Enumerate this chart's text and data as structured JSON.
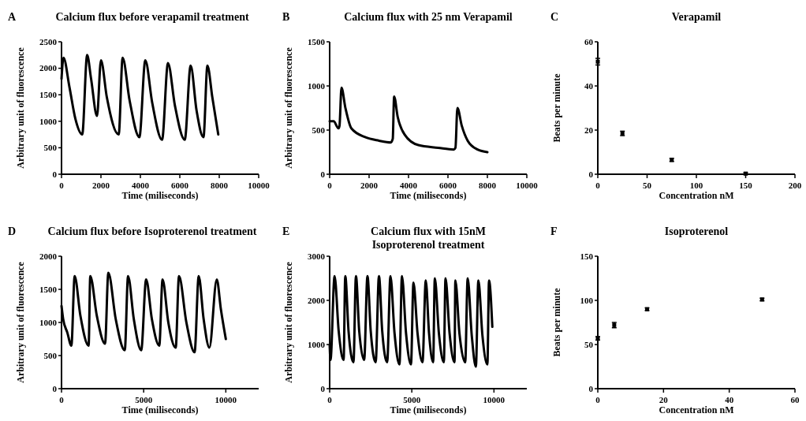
{
  "chart_data": [
    {
      "type": "line",
      "title": "Calcium flux before verapamil treatment",
      "annotations": [
        "A"
      ],
      "xlabel": "Time (miliseconds)",
      "ylabel": "Arbitrary unit of fluorescence",
      "xlim": [
        0,
        10000
      ],
      "xticks": [
        0,
        2000,
        4000,
        6000,
        8000,
        10000
      ],
      "ylim": [
        0,
        2500
      ],
      "yticks": [
        0,
        500,
        1000,
        1500,
        2000,
        2500
      ],
      "color": "#000000",
      "x": [
        0,
        100,
        400,
        700,
        1050,
        1300,
        1500,
        1800,
        2000,
        2300,
        2900,
        3100,
        3450,
        3950,
        4250,
        4600,
        5100,
        5400,
        5750,
        6250,
        6550,
        6850,
        7200,
        7400,
        7650,
        7950
      ],
      "values": [
        1800,
        2200,
        1650,
        1050,
        750,
        2250,
        1800,
        1100,
        2150,
        1450,
        750,
        2200,
        1400,
        700,
        2150,
        1350,
        650,
        2100,
        1300,
        650,
        2050,
        1200,
        700,
        2050,
        1450,
        750
      ]
    },
    {
      "type": "line",
      "title": "Calcium flux with 25 nm Verapamil",
      "annotations": [
        "B"
      ],
      "xlabel": "Time (miliseconds)",
      "ylabel": "Arbitrary unit of fluorescence",
      "xlim": [
        0,
        10000
      ],
      "xticks": [
        0,
        2000,
        4000,
        6000,
        8000,
        10000
      ],
      "ylim": [
        0,
        1500
      ],
      "yticks": [
        0,
        500,
        1000,
        1500
      ],
      "color": "#000000",
      "x": [
        0,
        200,
        450,
        500,
        600,
        800,
        1100,
        1800,
        2500,
        3100,
        3200,
        3270,
        3450,
        3800,
        4500,
        5500,
        6300,
        6380,
        6480,
        6700,
        7000,
        7500,
        8000
      ],
      "values": [
        600,
        600,
        520,
        550,
        980,
        750,
        520,
        420,
        380,
        360,
        400,
        880,
        650,
        450,
        330,
        300,
        280,
        300,
        750,
        550,
        380,
        280,
        250
      ]
    },
    {
      "type": "scatter",
      "title": "Verapamil",
      "annotations": [
        "C"
      ],
      "xlabel": "Concentration nM",
      "ylabel": "Beats per minute",
      "xlim": [
        0,
        200
      ],
      "xticks": [
        0,
        50,
        100,
        150,
        200
      ],
      "ylim": [
        0,
        60
      ],
      "yticks": [
        0,
        20,
        40,
        60
      ],
      "color": "#000000",
      "marker": "square",
      "x": [
        0,
        25,
        75,
        150
      ],
      "values": [
        51,
        18.5,
        6.5,
        0.3
      ],
      "errors": [
        1.5,
        1,
        0.7,
        0.5
      ]
    },
    {
      "type": "line",
      "title": "Calcium flux before Isoproterenol treatment",
      "annotations": [
        "D"
      ],
      "xlabel": "Time (miliseconds)",
      "ylabel": "Arbitrary unit of fluorescence",
      "xlim": [
        0,
        12000
      ],
      "xticks": [
        0,
        5000,
        10000
      ],
      "ylim": [
        0,
        2000
      ],
      "yticks": [
        0,
        500,
        1000,
        1500,
        2000
      ],
      "color": "#000000",
      "x": [
        0,
        100,
        350,
        600,
        800,
        1150,
        1650,
        1750,
        2150,
        2650,
        2850,
        3300,
        3850,
        4050,
        4400,
        4850,
        5150,
        5500,
        5950,
        6150,
        6500,
        6950,
        7150,
        7600,
        8100,
        8350,
        8650,
        9000,
        9450,
        9700,
        10000
      ],
      "values": [
        1250,
        1050,
        850,
        650,
        1700,
        1100,
        650,
        1700,
        1100,
        680,
        1750,
        1050,
        580,
        1700,
        1050,
        580,
        1650,
        1050,
        650,
        1650,
        1000,
        620,
        1700,
        1000,
        550,
        1700,
        1050,
        620,
        1650,
        1200,
        750
      ]
    },
    {
      "type": "line",
      "title": "Calcium flux with 15nM\nIsoproterenol treatment",
      "annotations": [
        "E"
      ],
      "xlabel": "Time (miliseconds)",
      "ylabel": "Arbitrary unit of fluorescence",
      "xlim": [
        0,
        12000
      ],
      "xticks": [
        0,
        5000,
        10000
      ],
      "ylim": [
        0,
        3000
      ],
      "yticks": [
        0,
        1000,
        2000,
        3000
      ],
      "color": "#000000",
      "x": [
        0,
        50,
        300,
        550,
        850,
        950,
        1150,
        1450,
        1600,
        1800,
        2100,
        2300,
        2500,
        2800,
        3000,
        3200,
        3500,
        3700,
        3950,
        4250,
        4400,
        4650,
        4950,
        5100,
        5350,
        5650,
        5850,
        6050,
        6300,
        6400,
        6650,
        6950,
        7050,
        7300,
        7600,
        7650,
        7900,
        8250,
        8400,
        8650,
        8900,
        9050,
        9300,
        9600,
        9700,
        9900
      ],
      "values": [
        1000,
        650,
        2550,
        1300,
        650,
        2550,
        1300,
        600,
        2550,
        1300,
        650,
        2550,
        1300,
        600,
        2550,
        1300,
        600,
        2550,
        1250,
        550,
        2550,
        1250,
        550,
        2400,
        1250,
        600,
        2450,
        1250,
        600,
        2500,
        1250,
        600,
        2500,
        1250,
        600,
        2450,
        1250,
        600,
        2500,
        1200,
        500,
        2450,
        1200,
        550,
        2450,
        1400
      ]
    },
    {
      "type": "scatter",
      "title": "Isoproterenol",
      "annotations": [
        "F"
      ],
      "xlabel": "Concentration nM",
      "ylabel": "Beats per minute",
      "xlim": [
        0,
        60
      ],
      "xticks": [
        0,
        20,
        40,
        60
      ],
      "ylim": [
        0,
        150
      ],
      "yticks": [
        0,
        50,
        100,
        150
      ],
      "color": "#000000",
      "marker": "square",
      "x": [
        0,
        5,
        15,
        50
      ],
      "values": [
        57,
        72,
        90,
        101
      ],
      "errors": [
        2,
        3,
        1.5,
        1.5
      ]
    }
  ]
}
